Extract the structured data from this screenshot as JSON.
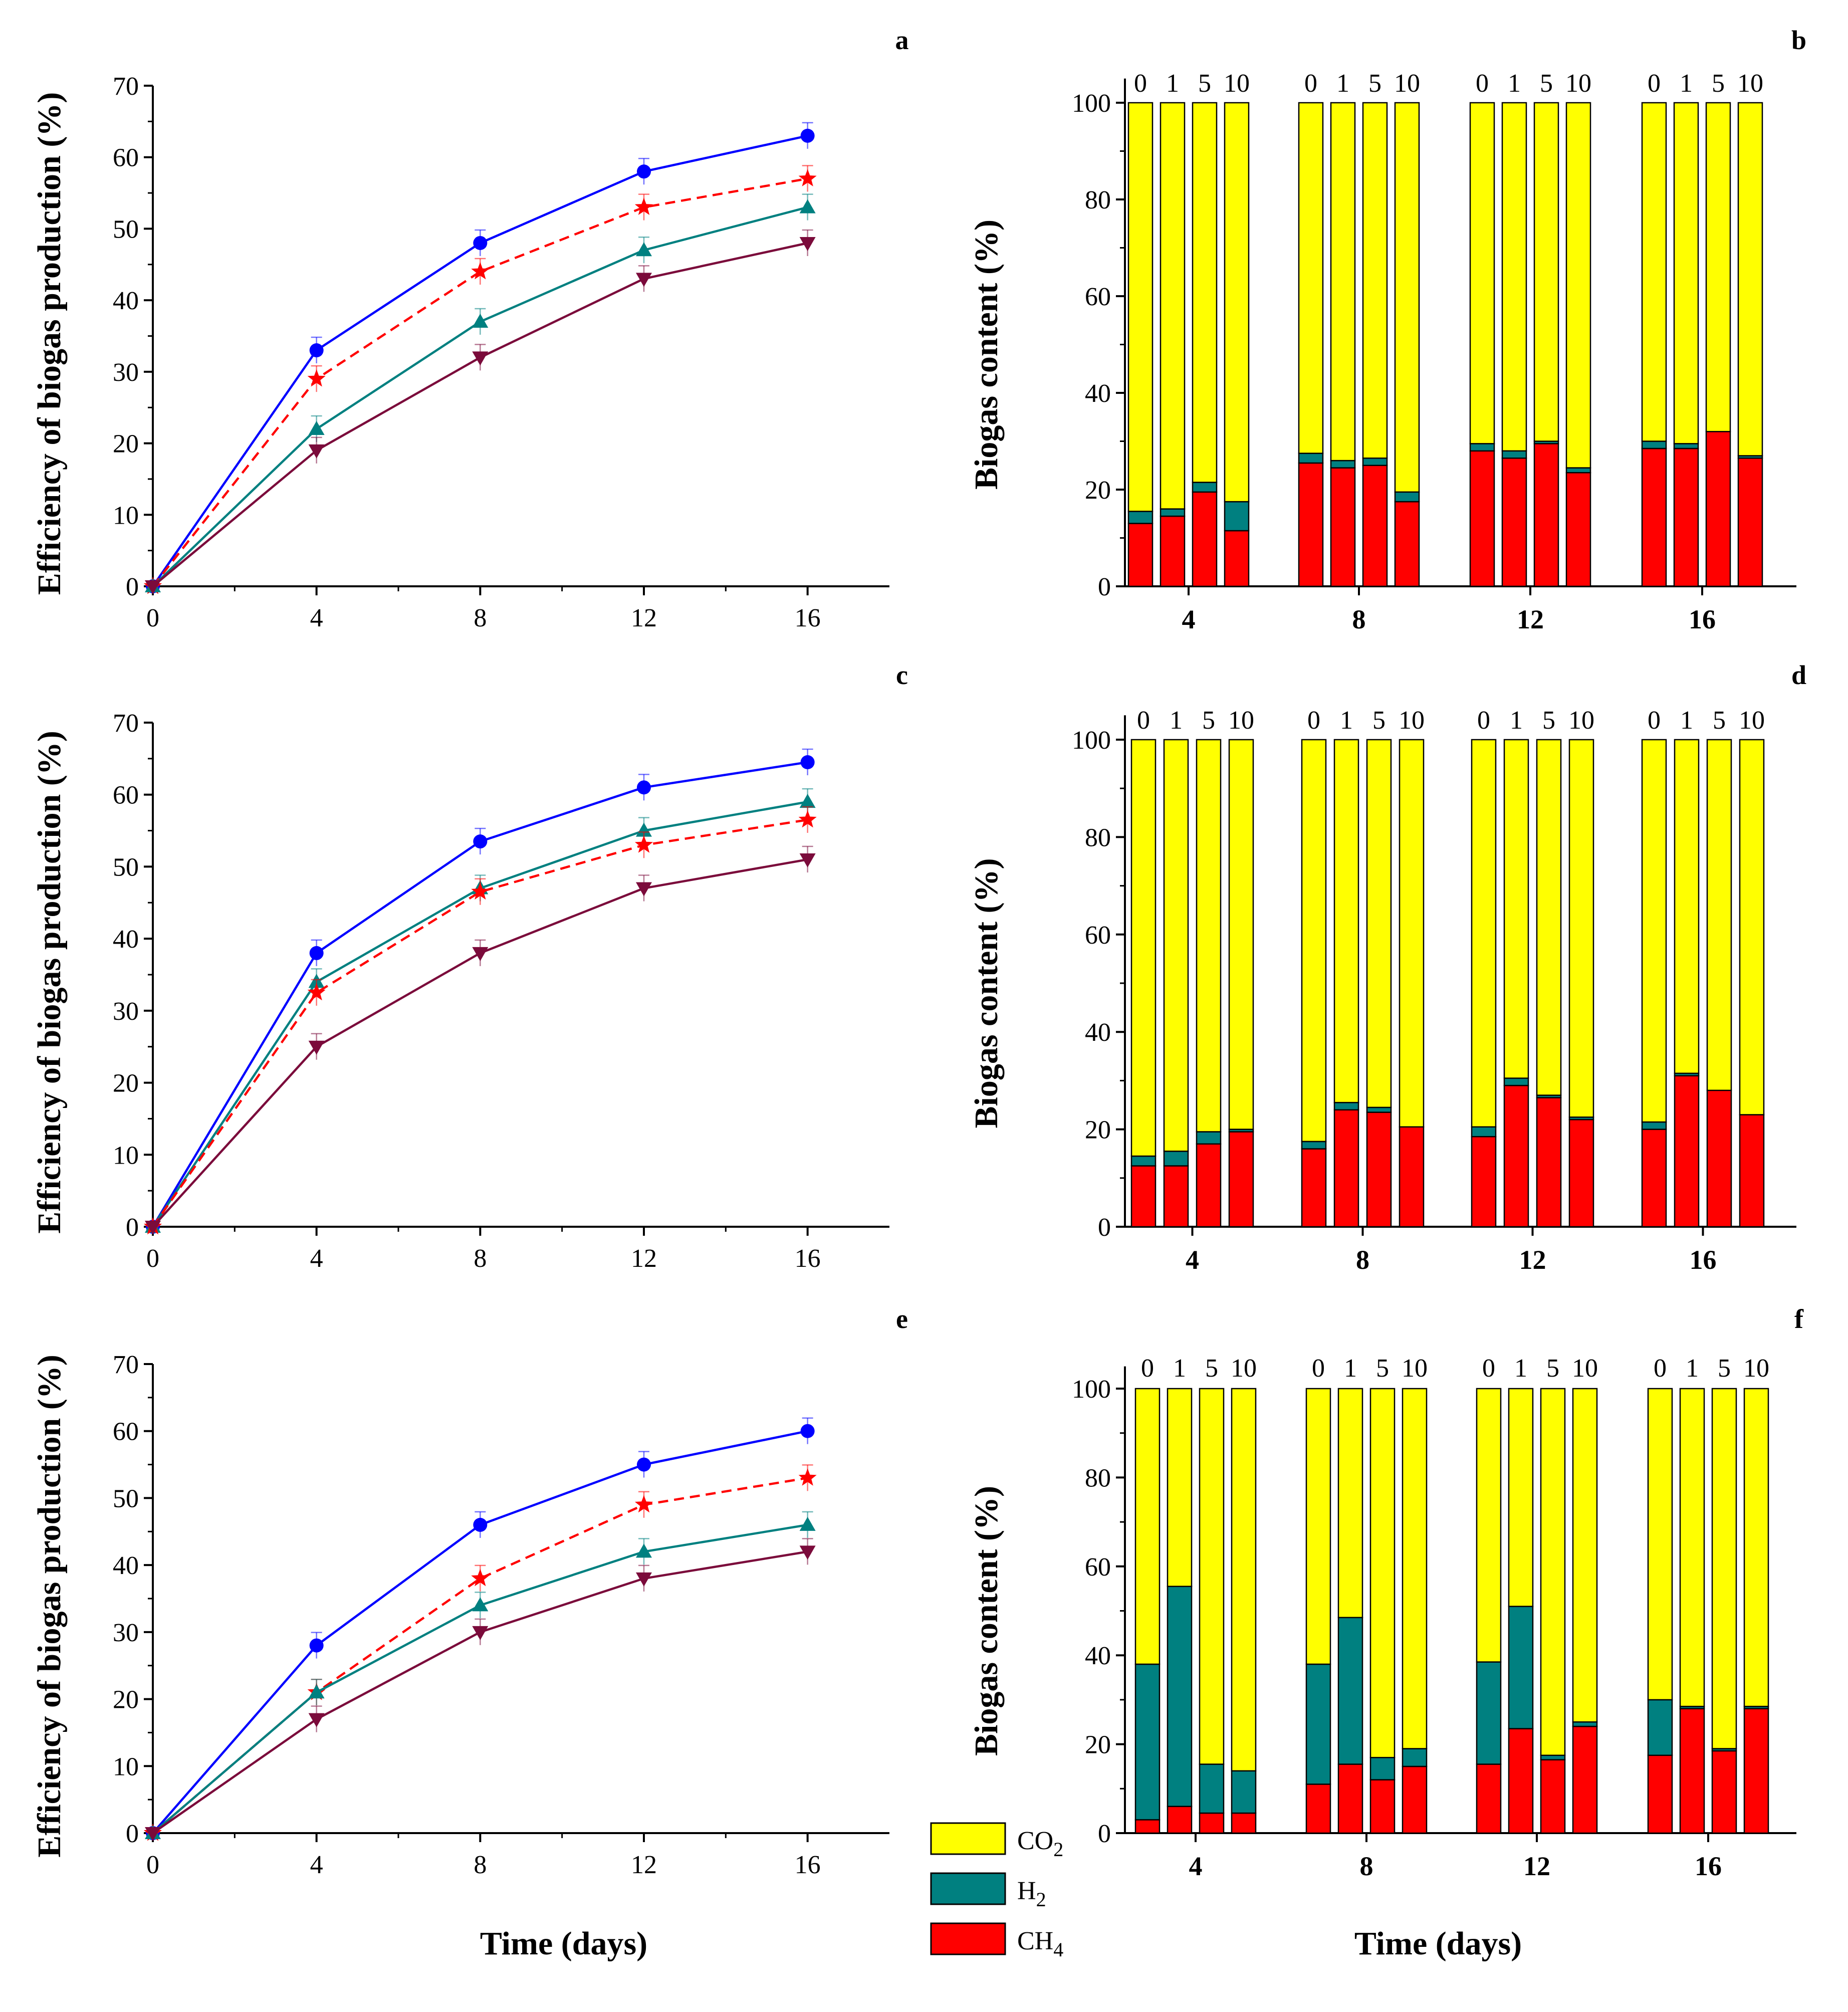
{
  "figure": {
    "x_axis_title": "Time (days)",
    "line_y_title": "Efficiency of biogas production (%)",
    "bar_y_title": "Biogas content (%)",
    "legend": [
      {
        "label": "CO2",
        "base": "CO",
        "sub": "2",
        "color": "#FFFF00"
      },
      {
        "label": "H2",
        "base": "H",
        "sub": "2",
        "color": "#008080"
      },
      {
        "label": "CH4",
        "base": "CH",
        "sub": "4",
        "color": "#FF0000"
      }
    ]
  },
  "chart_data": [
    {
      "panel": "a",
      "type": "line",
      "x": [
        0,
        4,
        8,
        12,
        16
      ],
      "xlim": [
        0,
        18
      ],
      "xticks": [
        0,
        4,
        8,
        12,
        16
      ],
      "ylim": [
        0,
        70
      ],
      "yticks": [
        0,
        10,
        20,
        30,
        40,
        50,
        60,
        70
      ],
      "xlabel": "",
      "ylabel": "Efficiency of biogas production (%)",
      "series": [
        {
          "name": "blue-circle",
          "color": "#0000FF",
          "marker": "circle",
          "dashed": false,
          "values": [
            0,
            33,
            48,
            58,
            63
          ]
        },
        {
          "name": "red-star",
          "color": "#FF0000",
          "marker": "star",
          "dashed": true,
          "values": [
            0,
            29,
            44,
            53,
            57
          ]
        },
        {
          "name": "teal-triangle-up",
          "color": "#008080",
          "marker": "triangle-up",
          "dashed": false,
          "values": [
            0,
            22,
            37,
            47,
            53
          ]
        },
        {
          "name": "maroon-triangle-down",
          "color": "#7B0B3B",
          "marker": "triangle-down",
          "dashed": false,
          "values": [
            0,
            19,
            32,
            43,
            48
          ]
        }
      ]
    },
    {
      "panel": "b",
      "type": "bar",
      "stacked": true,
      "categories": [
        "4",
        "8",
        "12",
        "16"
      ],
      "dose_labels": [
        "0",
        "1",
        "5",
        "10"
      ],
      "ylim": [
        0,
        105
      ],
      "yticks": [
        0,
        20,
        40,
        60,
        80,
        100
      ],
      "xlabel": "",
      "ylabel": "Biogas content (%)",
      "series": [
        {
          "name": "CH4",
          "color": "#FF0000",
          "values": [
            [
              13,
              14.5,
              19.5,
              11.5
            ],
            [
              25.5,
              24.5,
              25,
              17.5
            ],
            [
              28,
              26.5,
              29.5,
              23.5
            ],
            [
              28.5,
              28.5,
              32,
              26.5
            ]
          ]
        },
        {
          "name": "H2",
          "color": "#008080",
          "values": [
            [
              2.5,
              1.5,
              2,
              6
            ],
            [
              2,
              1.5,
              1.5,
              2
            ],
            [
              1.5,
              1.5,
              0.5,
              1
            ],
            [
              1.5,
              1,
              0,
              0.5
            ]
          ]
        },
        {
          "name": "CO2",
          "color": "#FFFF00",
          "values": [
            [
              84.5,
              84,
              78.5,
              82.5
            ],
            [
              72.5,
              74,
              73.5,
              80.5
            ],
            [
              70.5,
              72,
              70,
              75.5
            ],
            [
              70,
              70.5,
              68,
              73
            ]
          ]
        }
      ]
    },
    {
      "panel": "c",
      "type": "line",
      "x": [
        0,
        4,
        8,
        12,
        16
      ],
      "xlim": [
        0,
        18
      ],
      "xticks": [
        0,
        4,
        8,
        12,
        16
      ],
      "ylim": [
        0,
        70
      ],
      "yticks": [
        0,
        10,
        20,
        30,
        40,
        50,
        60,
        70
      ],
      "xlabel": "",
      "ylabel": "Efficiency of biogas production (%)",
      "series": [
        {
          "name": "blue-circle",
          "color": "#0000FF",
          "marker": "circle",
          "dashed": false,
          "values": [
            0,
            38,
            53.5,
            61,
            64.5
          ]
        },
        {
          "name": "teal-triangle-up",
          "color": "#008080",
          "marker": "triangle-up",
          "dashed": false,
          "values": [
            0,
            34,
            47,
            55,
            59
          ]
        },
        {
          "name": "red-star",
          "color": "#FF0000",
          "marker": "star",
          "dashed": true,
          "values": [
            0,
            32.5,
            46.5,
            53,
            56.5
          ]
        },
        {
          "name": "maroon-triangle-down",
          "color": "#7B0B3B",
          "marker": "triangle-down",
          "dashed": false,
          "values": [
            0,
            25,
            38,
            47,
            51
          ]
        }
      ]
    },
    {
      "panel": "d",
      "type": "bar",
      "stacked": true,
      "categories": [
        "4",
        "8",
        "12",
        "16"
      ],
      "dose_labels": [
        "0",
        "1",
        "5",
        "10"
      ],
      "ylim": [
        0,
        105
      ],
      "yticks": [
        0,
        20,
        40,
        60,
        80,
        100
      ],
      "xlabel": "",
      "ylabel": "Biogas content (%)",
      "series": [
        {
          "name": "CH4",
          "color": "#FF0000",
          "values": [
            [
              12.5,
              12.5,
              17,
              19.5
            ],
            [
              16,
              24,
              23.5,
              20.5
            ],
            [
              18.5,
              29,
              26.5,
              22
            ],
            [
              20,
              31,
              28,
              23
            ]
          ]
        },
        {
          "name": "H2",
          "color": "#008080",
          "values": [
            [
              2,
              3,
              2.5,
              0.5
            ],
            [
              1.5,
              1.5,
              1,
              0
            ],
            [
              2,
              1.5,
              0.5,
              0.5
            ],
            [
              1.5,
              0.5,
              0,
              0
            ]
          ]
        },
        {
          "name": "CO2",
          "color": "#FFFF00",
          "values": [
            [
              85.5,
              84.5,
              80.5,
              80
            ],
            [
              82.5,
              74.5,
              75.5,
              79.5
            ],
            [
              79.5,
              69.5,
              73,
              77.5
            ],
            [
              78.5,
              68.5,
              72,
              77
            ]
          ]
        }
      ]
    },
    {
      "panel": "e",
      "type": "line",
      "x": [
        0,
        4,
        8,
        12,
        16
      ],
      "xlim": [
        0,
        18
      ],
      "xticks": [
        0,
        4,
        8,
        12,
        16
      ],
      "ylim": [
        0,
        70
      ],
      "yticks": [
        0,
        10,
        20,
        30,
        40,
        50,
        60,
        70
      ],
      "xlabel": "Time (days)",
      "ylabel": "Efficiency of biogas production (%)",
      "series": [
        {
          "name": "blue-circle",
          "color": "#0000FF",
          "marker": "circle",
          "dashed": false,
          "values": [
            0,
            28,
            46,
            55,
            60
          ]
        },
        {
          "name": "red-star",
          "color": "#FF0000",
          "marker": "star",
          "dashed": true,
          "values": [
            0,
            21,
            38,
            49,
            53
          ]
        },
        {
          "name": "teal-triangle-up",
          "color": "#008080",
          "marker": "triangle-up",
          "dashed": false,
          "values": [
            0,
            21,
            34,
            42,
            46
          ]
        },
        {
          "name": "maroon-triangle-down",
          "color": "#7B0B3B",
          "marker": "triangle-down",
          "dashed": false,
          "values": [
            0,
            17,
            30,
            38,
            42
          ]
        }
      ]
    },
    {
      "panel": "f",
      "type": "bar",
      "stacked": true,
      "categories": [
        "4",
        "8",
        "12",
        "16"
      ],
      "dose_labels": [
        "0",
        "1",
        "5",
        "10"
      ],
      "ylim": [
        0,
        105
      ],
      "yticks": [
        0,
        20,
        40,
        60,
        80,
        100
      ],
      "xlabel": "Time (days)",
      "ylabel": "Biogas content (%)",
      "series": [
        {
          "name": "CH4",
          "color": "#FF0000",
          "values": [
            [
              3,
              6,
              4.5,
              4.5
            ],
            [
              11,
              15.5,
              12,
              15
            ],
            [
              15.5,
              23.5,
              16.5,
              24
            ],
            [
              17.5,
              28,
              18.5,
              28
            ]
          ]
        },
        {
          "name": "H2",
          "color": "#008080",
          "values": [
            [
              35,
              49.5,
              11,
              9.5
            ],
            [
              27,
              33,
              5,
              4
            ],
            [
              23,
              27.5,
              1,
              1
            ],
            [
              12.5,
              0.5,
              0.5,
              0.5
            ]
          ]
        },
        {
          "name": "CO2",
          "color": "#FFFF00",
          "values": [
            [
              62,
              44.5,
              84.5,
              86
            ],
            [
              62,
              51.5,
              83,
              81
            ],
            [
              61.5,
              49,
              82.5,
              75
            ],
            [
              70,
              71.5,
              81,
              71.5
            ]
          ]
        }
      ]
    }
  ]
}
